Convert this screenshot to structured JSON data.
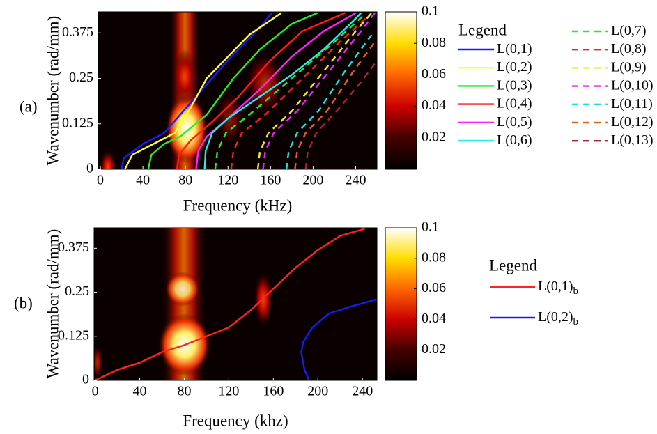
{
  "chart_data": [
    {
      "type": "line",
      "panel_label": "(a)",
      "xlabel": "Frequency (kHz)",
      "ylabel": "Wavenumber (rad/mm)",
      "xlim": [
        -2,
        260
      ],
      "ylim": [
        0,
        0.433
      ],
      "xticks": [
        0,
        40,
        80,
        120,
        160,
        200,
        240
      ],
      "yticks": [
        0,
        0.125,
        0.25,
        0.375
      ],
      "colorbar": {
        "lim": [
          0,
          0.1
        ],
        "ticks": [
          0.02,
          0.04,
          0.06,
          0.08,
          0.1
        ]
      },
      "legend_title": "Legend",
      "series": [
        {
          "name": "L(0,1)",
          "color": "#1a1aff",
          "dash": false,
          "x": [
            20,
            22,
            40,
            60,
            75,
            90,
            120,
            150,
            161
          ],
          "values": [
            0,
            0.03,
            0.07,
            0.1,
            0.15,
            0.2,
            0.3,
            0.39,
            0.43
          ]
        },
        {
          "name": "L(0,2)",
          "color": "#ffff33",
          "dash": false,
          "x": [
            23,
            30,
            50,
            70,
            85,
            100,
            110,
            140,
            170
          ],
          "values": [
            0,
            0.04,
            0.07,
            0.1,
            0.17,
            0.25,
            0.28,
            0.37,
            0.43
          ]
        },
        {
          "name": "L(0,3)",
          "color": "#22ee22",
          "dash": false,
          "x": [
            45,
            48,
            60,
            75,
            100,
            125,
            150,
            180,
            204
          ],
          "values": [
            0,
            0.04,
            0.07,
            0.09,
            0.15,
            0.25,
            0.33,
            0.4,
            0.43
          ]
        },
        {
          "name": "L(0,4)",
          "color": "#ff1a1a",
          "dash": false,
          "x": [
            72,
            74,
            85,
            105,
            130,
            160,
            190,
            230
          ],
          "values": [
            0,
            0.04,
            0.08,
            0.13,
            0.2,
            0.3,
            0.38,
            0.43
          ]
        },
        {
          "name": "L(0,5)",
          "color": "#ff22ff",
          "dash": false,
          "x": [
            90,
            92,
            100,
            120,
            150,
            180,
            210,
            240
          ],
          "values": [
            0,
            0.05,
            0.09,
            0.14,
            0.22,
            0.31,
            0.38,
            0.43
          ]
        },
        {
          "name": "L(0,6)",
          "color": "#22eeee",
          "dash": false,
          "x": [
            98,
            99,
            105,
            120,
            150,
            180,
            210,
            235,
            245
          ],
          "values": [
            0,
            0.05,
            0.1,
            0.14,
            0.2,
            0.26,
            0.33,
            0.4,
            0.43
          ]
        },
        {
          "name": "L(0,7)",
          "color": "#22ee22",
          "dash": true,
          "x": [
            108,
            110,
            118,
            140,
            180,
            220,
            250
          ],
          "values": [
            0,
            0.05,
            0.1,
            0.15,
            0.25,
            0.35,
            0.43
          ]
        },
        {
          "name": "L(0,8)",
          "color": "#ee2222",
          "dash": true,
          "x": [
            123,
            125,
            133,
            155,
            190,
            225,
            255
          ],
          "values": [
            0,
            0.05,
            0.1,
            0.15,
            0.25,
            0.35,
            0.43
          ]
        },
        {
          "name": "L(0,9)",
          "color": "#eeee22",
          "dash": true,
          "x": [
            148,
            150,
            158,
            180,
            210,
            240,
            255
          ],
          "values": [
            0,
            0.05,
            0.1,
            0.16,
            0.27,
            0.38,
            0.43
          ]
        },
        {
          "name": "L(0,10)",
          "color": "#ee22ee",
          "dash": true,
          "x": [
            153,
            155,
            163,
            185,
            215,
            245,
            258
          ],
          "values": [
            0,
            0.05,
            0.1,
            0.16,
            0.27,
            0.38,
            0.43
          ]
        },
        {
          "name": "L(0,11)",
          "color": "#22dddd",
          "dash": true,
          "x": [
            175,
            177,
            185,
            205,
            230,
            255
          ],
          "values": [
            0,
            0.05,
            0.1,
            0.16,
            0.27,
            0.37
          ]
        },
        {
          "name": "L(0,12)",
          "color": "#dd6622",
          "dash": true,
          "x": [
            183,
            185,
            193,
            213,
            238,
            258
          ],
          "values": [
            0,
            0.05,
            0.1,
            0.16,
            0.27,
            0.35
          ]
        },
        {
          "name": "L(0,13)",
          "color": "#aa2233",
          "dash": true,
          "x": [
            193,
            195,
            203,
            225,
            245,
            258
          ],
          "values": [
            0,
            0.05,
            0.1,
            0.17,
            0.24,
            0.29
          ]
        }
      ]
    },
    {
      "type": "line",
      "panel_label": "(b)",
      "xlabel": "Frequency (khz)",
      "ylabel": "Wavenumber (rad/mm)",
      "xlim": [
        -1,
        253
      ],
      "ylim": [
        0,
        0.433
      ],
      "xticks": [
        0,
        40,
        80,
        120,
        160,
        200,
        240
      ],
      "yticks": [
        0,
        0.125,
        0.25,
        0.375
      ],
      "colorbar": {
        "lim": [
          0,
          0.1
        ],
        "ticks": [
          0.02,
          0.04,
          0.06,
          0.08,
          0.1
        ]
      },
      "legend_title": "Legend",
      "series": [
        {
          "name": "L(0,1)",
          "name_sub": "b",
          "color": "#ff2222",
          "dash": false,
          "x": [
            0,
            20,
            40,
            60,
            80,
            100,
            120,
            140,
            160,
            180,
            200,
            220,
            242
          ],
          "values": [
            0,
            0.03,
            0.05,
            0.08,
            0.1,
            0.125,
            0.15,
            0.2,
            0.26,
            0.32,
            0.37,
            0.41,
            0.43
          ]
        },
        {
          "name": "L(0,2)",
          "name_sub": "b",
          "color": "#1a1aee",
          "dash": false,
          "x": [
            192,
            188,
            185,
            187,
            195,
            210,
            230,
            253
          ],
          "values": [
            0,
            0.03,
            0.08,
            0.11,
            0.15,
            0.19,
            0.21,
            0.23
          ]
        }
      ]
    }
  ]
}
